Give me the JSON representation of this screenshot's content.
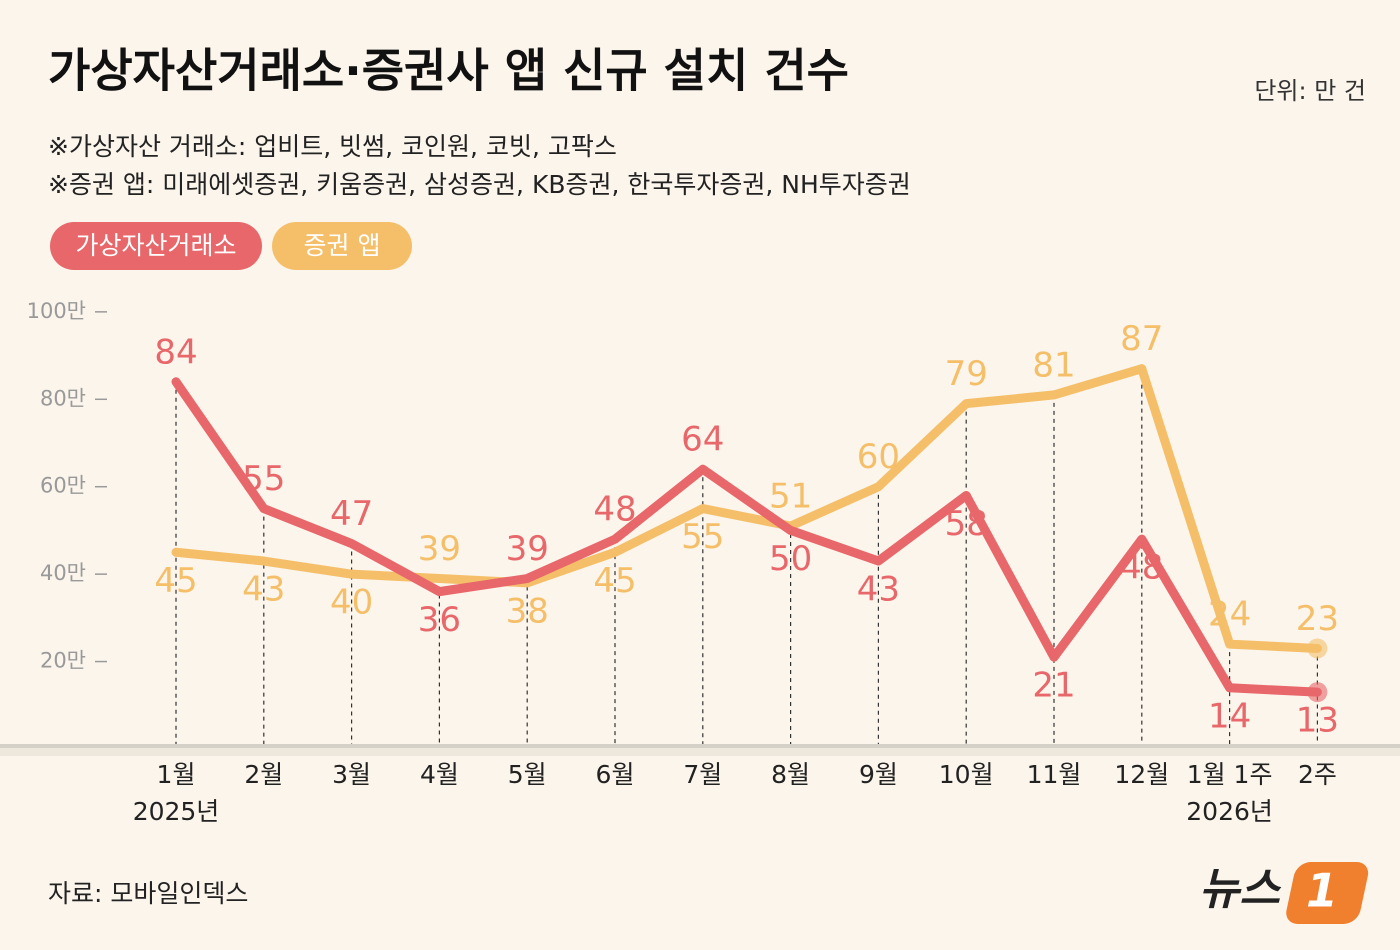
{
  "chart_data": {
    "type": "line",
    "title": "가상자산거래소·증권사 앱 신규 설치 건수",
    "unit": "단위: 만 건",
    "notes": [
      "※가상자산 거래소: 업비트, 빗썸, 코인원, 코빗, 고팍스",
      "※증권 앱: 미래에셋증권, 키움증권, 삼성증권, KB증권, 한국투자증권, NH투자증권"
    ],
    "categories": [
      "1월\n2025년",
      "2월",
      "3월",
      "4월",
      "5월",
      "6월",
      "7월",
      "8월",
      "9월",
      "10월",
      "11월",
      "12월",
      "1월 1주\n2026년",
      "2주"
    ],
    "series": [
      {
        "name": "가상자산거래소",
        "color": "#e8676a",
        "values": [
          84,
          55,
          47,
          36,
          39,
          48,
          64,
          50,
          43,
          58,
          21,
          48,
          14,
          13
        ]
      },
      {
        "name": "증권 앱",
        "color": "#f5bf6a",
        "values": [
          45,
          43,
          40,
          39,
          38,
          45,
          55,
          51,
          60,
          79,
          81,
          87,
          24,
          23
        ]
      }
    ],
    "ylim": [
      0,
      105
    ],
    "yticks": [
      {
        "value": 20,
        "label": "20만"
      },
      {
        "value": 40,
        "label": "40만"
      },
      {
        "value": 60,
        "label": "60만"
      },
      {
        "value": 80,
        "label": "80만"
      },
      {
        "value": 100,
        "label": "100만"
      }
    ],
    "source": "자료: 모바일인덱스",
    "logo": {
      "text": "뉴스",
      "mark": "1"
    }
  }
}
